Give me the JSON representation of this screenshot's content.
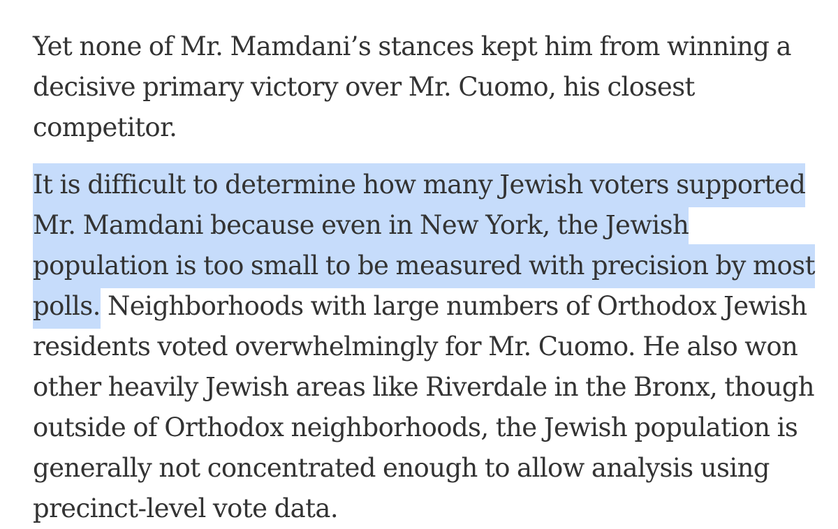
{
  "article": {
    "paragraph_1": "Yet none of Mr. Mamdani’s stances kept him from winning a decisive primary victory over Mr. Cuomo, his closest competitor.",
    "paragraph_2_highlighted": "It is difficult to determine how many Jewish voters supported Mr. Mamdani because even in New York, the Jewish population is too small to be measured with precision by most polls.",
    "paragraph_2_rest": " Neighborhoods with large numbers of Orthodox Jewish residents voted overwhelmingly for Mr. Cuomo. He also won other heavily Jewish areas like Riverdale in the Bronx, though outside of Orthodox neighborhoods, the Jewish population is generally not concentrated enough to allow analysis using precinct-level vote data."
  },
  "colors": {
    "text": "#333333",
    "highlight": "#c6dcfb",
    "background": "#ffffff"
  }
}
